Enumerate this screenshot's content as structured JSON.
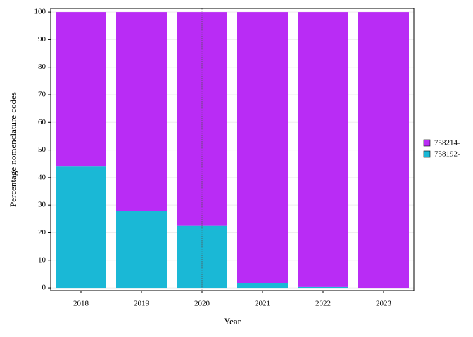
{
  "chart_data": {
    "type": "stacked_bar",
    "x_label": "Year",
    "y_label": "Percentage nomenclature codes",
    "categories": [
      "2018",
      "2019",
      "2020",
      "2021",
      "2022",
      "2023"
    ],
    "series": [
      {
        "name": "758214-",
        "color": "#b92cf5",
        "values": [
          56,
          72,
          77.5,
          98.2,
          99.7,
          100
        ]
      },
      {
        "name": "758192-",
        "color": "#1ab8d6",
        "values": [
          44,
          28,
          22.5,
          1.8,
          0.3,
          0
        ]
      }
    ],
    "ylim": [
      -1,
      101.3
    ],
    "yticks": [
      0,
      10,
      20,
      30,
      40,
      50,
      60,
      70,
      80,
      90,
      100
    ],
    "grid": true,
    "reference_line": "2020",
    "legend": "right"
  }
}
